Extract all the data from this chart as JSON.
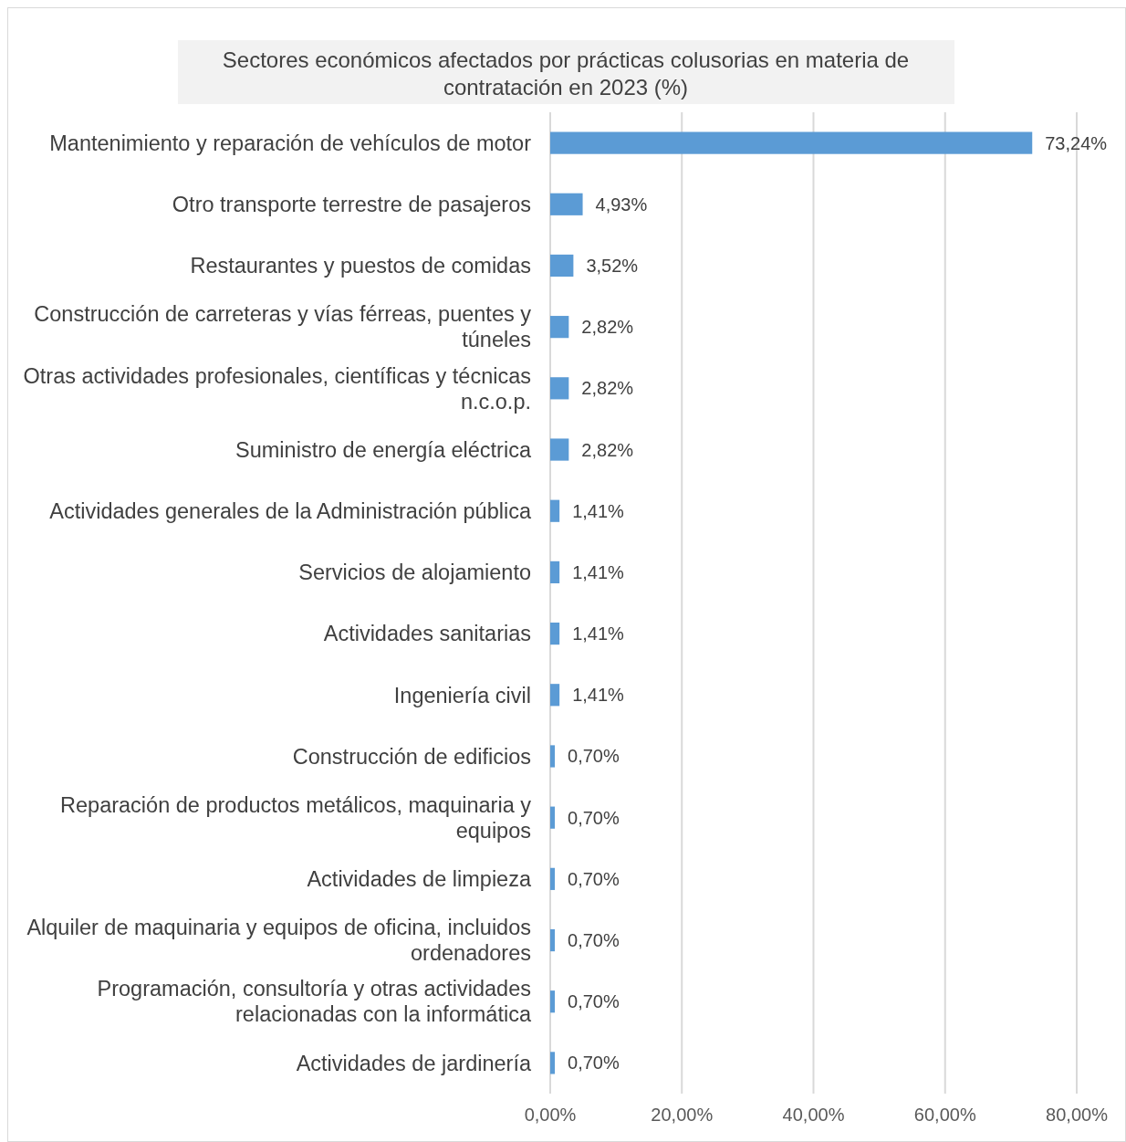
{
  "chart_data": {
    "type": "bar",
    "orientation": "horizontal",
    "title": "Sectores económicos afectados por prácticas colusorias en materia de contratación en 2023 (%)",
    "categories": [
      "Mantenimiento y reparación de vehículos de motor",
      "Otro transporte terrestre de pasajeros",
      "Restaurantes y puestos de comidas",
      "Construcción de carreteras y vías férreas, puentes y túneles",
      "Otras actividades profesionales, científicas y técnicas n.c.o.p.",
      "Suministro de energía eléctrica",
      "Actividades generales de la Administración pública",
      "Servicios de alojamiento",
      "Actividades sanitarias",
      "Ingeniería civil",
      "Construcción de edificios",
      "Reparación de productos metálicos, maquinaria y equipos",
      "Actividades de limpieza",
      "Alquiler de maquinaria y equipos de oficina, incluidos ordenadores",
      "Programación, consultoría y otras actividades relacionadas con la informática",
      "Actividades de jardinería"
    ],
    "values": [
      73.24,
      4.93,
      3.52,
      2.82,
      2.82,
      2.82,
      1.41,
      1.41,
      1.41,
      1.41,
      0.7,
      0.7,
      0.7,
      0.7,
      0.7,
      0.7
    ],
    "value_labels": [
      "73,24%",
      "4,93%",
      "3,52%",
      "2,82%",
      "2,82%",
      "2,82%",
      "1,41%",
      "1,41%",
      "1,41%",
      "1,41%",
      "0,70%",
      "0,70%",
      "0,70%",
      "0,70%",
      "0,70%",
      "0,70%"
    ],
    "color": "#5b9bd5",
    "xlim": [
      0,
      80
    ],
    "xticks": [
      {
        "value": 0,
        "label": "0,00%"
      },
      {
        "value": 20,
        "label": "20,00%"
      },
      {
        "value": 40,
        "label": "40,00%"
      },
      {
        "value": 60,
        "label": "60,00%"
      },
      {
        "value": 80,
        "label": "80,00%"
      }
    ],
    "grid": "x"
  }
}
